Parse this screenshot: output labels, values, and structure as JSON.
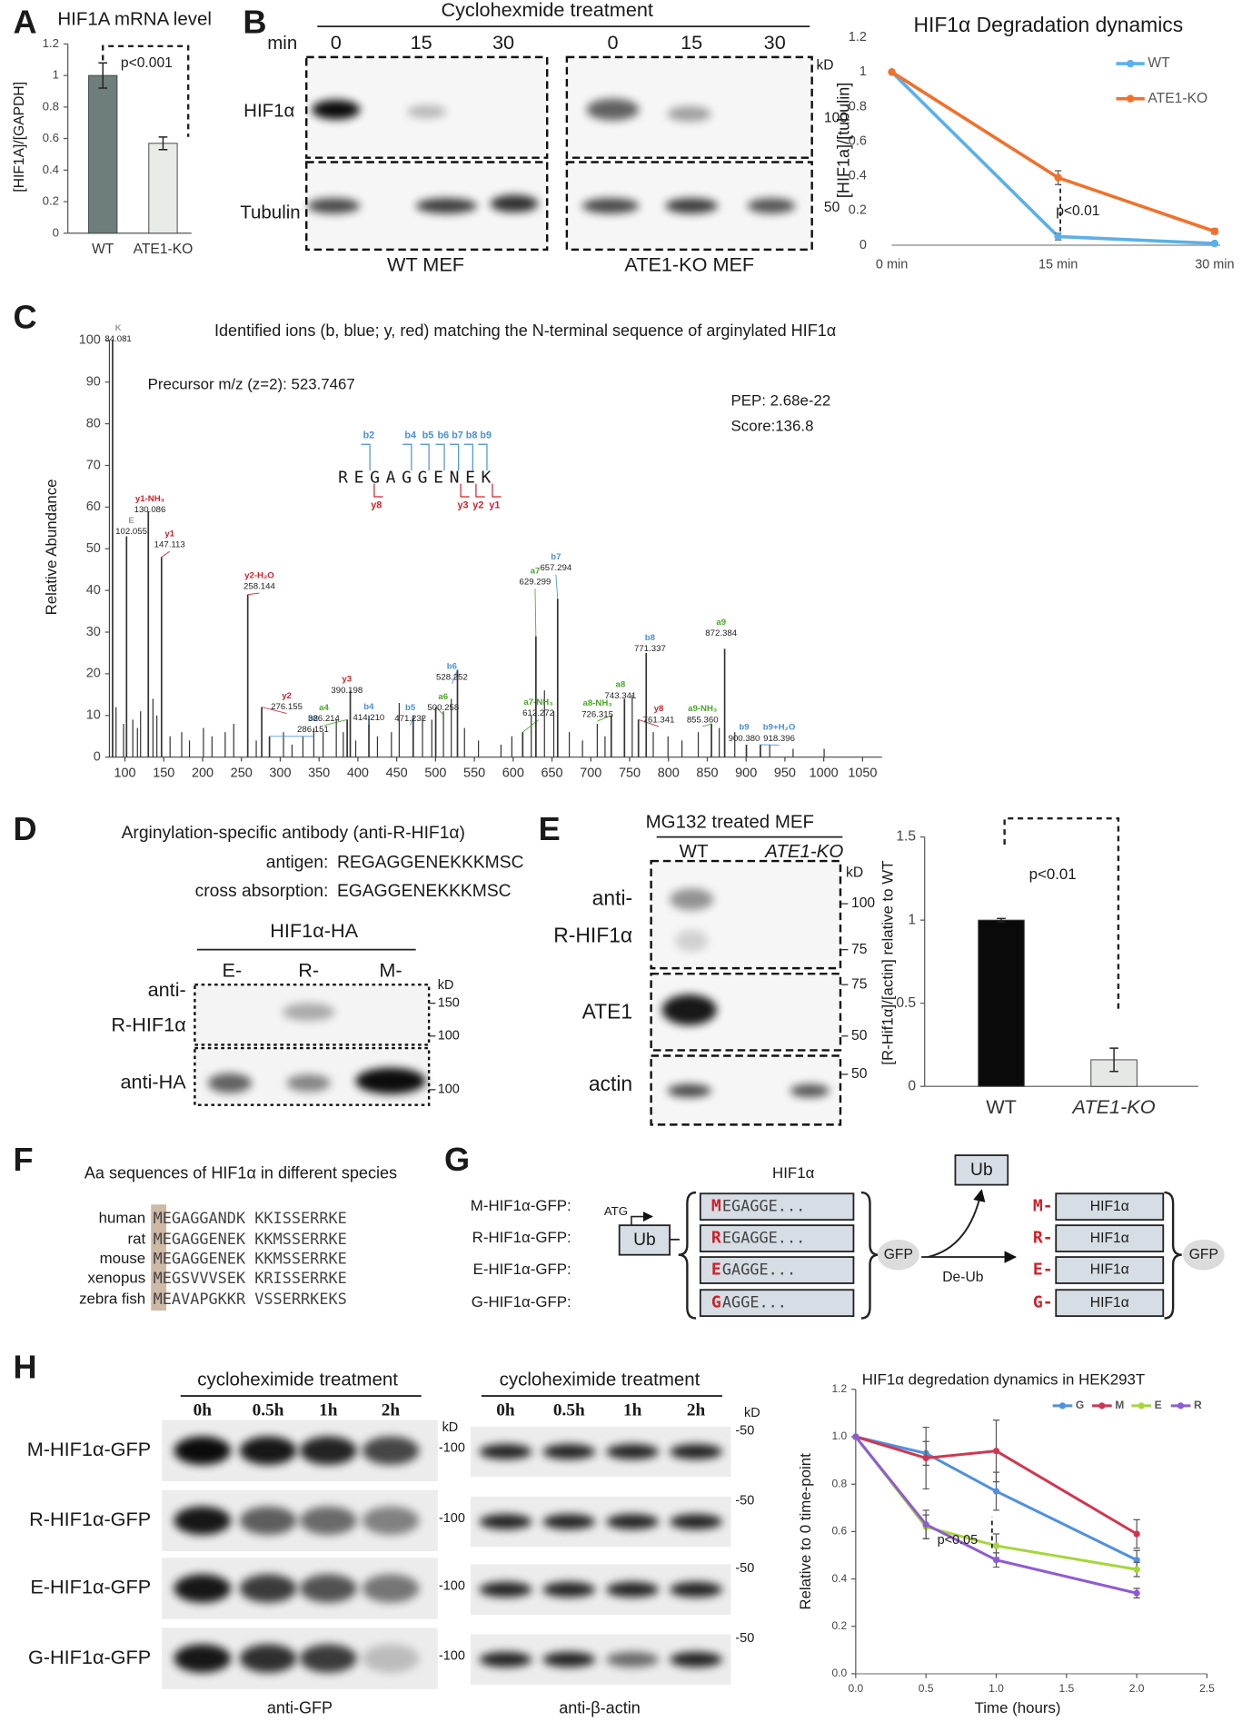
{
  "figure": {
    "panel_letters": [
      "A",
      "B",
      "C",
      "D",
      "E",
      "F",
      "G",
      "H"
    ],
    "B": {
      "title": "Cyclohexmide treatment",
      "min": "min",
      "lanes": [
        "0",
        "15",
        "30",
        "0",
        "15",
        "30"
      ],
      "rows": [
        "HIF1α",
        "Tubulin"
      ],
      "kd": "kD",
      "markers": [
        "100",
        "50"
      ],
      "groups": [
        "WT MEF",
        "ATE1-KO MEF"
      ]
    },
    "D": {
      "title": "Arginylation-specific antibody (anti-R-HIF1α)",
      "antigen_label": "antigen:",
      "antigen": "REGAGGENEKKKMSC",
      "cross_label": "cross absorption:",
      "cross": "EGAGGENEKKKMSC",
      "construct": "HIF1α-HA",
      "lanes": [
        "E-",
        "R-",
        "M-"
      ],
      "rows": [
        [
          "anti-",
          "R-HIF1α"
        ],
        [
          "anti-HA"
        ]
      ],
      "kd": "kD",
      "markers": [
        "150",
        "100",
        "100"
      ]
    },
    "E": {
      "title": "MG132 treated MEF",
      "lanes": [
        "WT",
        "ATE1-KO"
      ],
      "rows": [
        [
          "anti-",
          "R-HIF1α"
        ],
        [
          "ATE1"
        ],
        [
          "actin"
        ]
      ],
      "kd": "kD",
      "markers": [
        "100",
        "75",
        "75",
        "50",
        "50"
      ]
    },
    "F": {
      "title": "Aa sequences of HIF1α in different species",
      "rows": [
        {
          "species": "human",
          "sequence": "MEGAGGANDK KKISSERRKE"
        },
        {
          "species": "rat",
          "sequence": "MEGAGGENEK KKMSSERRKE"
        },
        {
          "species": "mouse",
          "sequence": "MEGAGGENEK KKMSSERRKE"
        },
        {
          "species": "xenopus",
          "sequence": "MEGSVVVSEK KRISSERRKE"
        },
        {
          "species": "zebra fish",
          "sequence": "MEAVAPGKKR VSSERRKEKS"
        }
      ]
    },
    "G": {
      "constructs": [
        "M-HIF1α-GFP:",
        "R-HIF1α-GFP:",
        "E-HIF1α-GFP:",
        "G-HIF1α-GFP:"
      ],
      "header": "HIF1α",
      "atg": "ATG",
      "ub": "Ub",
      "sequences": [
        {
          "first": "M",
          "rest": "EGAGGE..."
        },
        {
          "first": "R",
          "rest": "EGAGGE..."
        },
        {
          "first": "E",
          "rest": "GAGGE..."
        },
        {
          "first": "G",
          "rest": "AGGE..."
        }
      ],
      "gfp": "GFP",
      "released_ub": "Ub",
      "deub": "De-Ub",
      "products": [
        {
          "first": "M-",
          "protein": "HIF1α"
        },
        {
          "first": "R-",
          "protein": "HIF1α"
        },
        {
          "first": "E-",
          "protein": "HIF1α"
        },
        {
          "first": "G-",
          "protein": "HIF1α"
        }
      ],
      "gfp2": "GFP"
    },
    "H": {
      "treatments": [
        "cycloheximide treatment",
        "cycloheximide treatment"
      ],
      "lanes": [
        "0h",
        "0.5h",
        "1h",
        "2h",
        "0h",
        "0.5h",
        "1h",
        "2h"
      ],
      "rows": [
        "M-HIF1α-GFP",
        "R-HIF1α-GFP",
        "E-HIF1α-GFP",
        "G-HIF1α-GFP"
      ],
      "kd": [
        "kD",
        "kD"
      ],
      "gfp_markers": [
        "-100",
        "-100",
        "-100",
        "-100"
      ],
      "actin_markers": [
        "-50",
        "-50",
        "-50",
        "-50"
      ],
      "antibodies": [
        "anti-GFP",
        "anti-β-actin"
      ]
    }
  },
  "chart_data": [
    {
      "type": "bar",
      "title": "HIF1A mRNA level",
      "y_label": "[HIF1A]/[GAPDH]",
      "categories": [
        "WT",
        "ATE1-KO"
      ],
      "values": [
        1,
        0.57
      ],
      "errors": [
        0.08,
        0.04
      ],
      "colors": [
        "#6e7e7a",
        "#e8ebe8"
      ],
      "ylim": [
        0,
        1.2
      ],
      "yticks": [
        0,
        0.2,
        0.4,
        0.6,
        0.8,
        1,
        1.2
      ],
      "annotation": "p<0.001"
    },
    {
      "type": "line",
      "title": "HIF1α Degradation dynamics",
      "y_label": "[HIF1a]/[tubulin]",
      "categories": [
        "0 min",
        "15 min",
        "30 min"
      ],
      "series": [
        {
          "name": "WT",
          "color": "#5ab0ea",
          "values": [
            1,
            0.05,
            0.01
          ],
          "errors": [
            0,
            0.02,
            0
          ]
        },
        {
          "name": "ATE1-KO",
          "color": "#f0712c",
          "values": [
            1,
            0.39,
            0.08
          ],
          "errors": [
            0,
            0.04,
            0.015
          ]
        }
      ],
      "ylim": [
        0,
        1.2
      ],
      "yticks": [
        0,
        0.2,
        0.4,
        0.6,
        0.8,
        1,
        1.2
      ],
      "legend": "upper right",
      "annotation": "p<0.01"
    },
    {
      "type": "spectrum",
      "title": "Identified ions (b, blue;  y, red) matching the N-terminal sequence of arginylated HIF1α",
      "y_label": "Relative Abundance",
      "annotations": [
        "Precursor m/z (z=2): 523.7467",
        "PEP: 2.68e-22",
        "Score:136.8"
      ],
      "sequence": "REGAGGENEK",
      "b_ions": [
        "b2",
        "b4",
        "b5",
        "b6",
        "b7",
        "b8",
        "b9"
      ],
      "y_ions": [
        "y8",
        "y3",
        "y2",
        "y1"
      ],
      "x": [
        84.081,
        102.055,
        130.086,
        147.113,
        258.144,
        276.155,
        286.151,
        386.214,
        390.198,
        414.21,
        471.232,
        500.258,
        528.252,
        612.272,
        629.299,
        657.294,
        726.315,
        743.341,
        761.341,
        771.337,
        855.36,
        872.384,
        900.38,
        918.396
      ],
      "values": [
        100,
        53,
        59,
        48,
        39,
        12,
        5,
        9,
        16,
        10,
        10,
        12,
        21,
        6,
        29,
        38,
        10,
        14,
        9,
        25,
        8,
        26,
        3,
        3
      ],
      "x_labels": [
        "84.081",
        "102.055",
        "130.086",
        "147.113",
        "258.144",
        "276.155",
        "286.151",
        "386.214",
        "390.198",
        "414.210",
        "471.232",
        "500.258",
        "528.252",
        "612.272",
        "629.299",
        "657.294",
        "726.315",
        "743.341",
        "761.341",
        "771.337",
        "855.360",
        "872.384",
        "900.380",
        "918.396"
      ],
      "ion_labels": [
        "K",
        "E",
        "y1-NH₃",
        "y1",
        "y2-H₂O",
        "y2",
        "b2",
        "a4",
        "y3",
        "b4",
        "b5",
        "a6",
        "b6",
        "a7-NH₃",
        "a7",
        "b7",
        "a8-NH₃",
        "a8",
        "y8",
        "b8",
        "a9-NH₃",
        "a9",
        "b9",
        "b9+H₂O"
      ],
      "ion_colors": {
        "b": "#4a8fd8",
        "y": "#d0202a",
        "a": "#4aa52a",
        "other": "#9a9a9a"
      },
      "color": "#333333",
      "unlabeled_x": [
        88.5,
        98.2,
        110.1,
        116.1,
        120.1,
        136.1,
        141.1,
        158.1,
        173.1,
        183.1,
        201.1,
        212.1,
        229.1,
        240.1,
        269.1,
        304.2,
        315.2,
        329.2,
        343.2,
        355.2,
        372.2,
        381.2,
        397.2,
        425.2,
        443.2,
        453.2,
        483.2,
        495.2,
        510.2,
        520.3,
        537.3,
        555.3,
        584.3,
        598.3,
        623.3,
        640.3,
        652.3,
        672.3,
        689.3,
        708.3,
        718.3,
        753.3,
        780.4,
        799.4,
        817.4,
        838.4,
        865.4,
        885.4,
        930.4,
        960.5,
        1000.5
      ],
      "unlabeled_values": [
        12,
        8,
        9,
        7,
        11,
        14,
        10,
        5,
        6,
        4,
        7,
        5,
        6,
        8,
        4,
        6,
        3,
        5,
        7,
        6,
        9,
        6,
        4,
        5,
        6,
        13,
        10,
        9,
        11,
        14,
        7,
        4,
        3,
        5,
        10,
        16,
        11,
        6,
        4,
        8,
        5,
        15,
        6,
        5,
        4,
        6,
        7,
        6,
        3,
        2,
        2
      ],
      "xlim": [
        80,
        1075
      ],
      "xticks": [
        100,
        150,
        200,
        250,
        300,
        350,
        400,
        450,
        500,
        550,
        600,
        650,
        700,
        750,
        800,
        850,
        900,
        950,
        1000,
        1050
      ],
      "ylim": [
        0,
        100
      ],
      "yticks": [
        0,
        10,
        20,
        30,
        40,
        50,
        60,
        70,
        80,
        90,
        100
      ]
    },
    {
      "type": "bar",
      "y_label": "[R-Hif1α]/[actin] relative to WT",
      "categories": [
        "WT",
        "ATE1-KO"
      ],
      "values": [
        1,
        0.16
      ],
      "errors": [
        0.01,
        0.07
      ],
      "colors": [
        "#0a0a0a",
        "#e6e8e6"
      ],
      "ylim": [
        0,
        1.5
      ],
      "yticks": [
        0,
        0.5,
        1,
        1.5
      ],
      "annotation": "p<0.01"
    },
    {
      "type": "line",
      "title": "HIF1α degredation dynamics in HEK293T",
      "x_label": "Time (hours)",
      "y_label": "Relative to 0 time-point",
      "x": [
        0,
        0.5,
        1,
        2
      ],
      "series": [
        {
          "name": "G",
          "color": "#4f90e0",
          "values": [
            1,
            0.93,
            0.77,
            0.48
          ],
          "errors": [
            0,
            0.05,
            0.08,
            0.04
          ]
        },
        {
          "name": "M",
          "color": "#d1364f",
          "values": [
            1,
            0.91,
            0.94,
            0.59
          ],
          "errors": [
            0,
            0.13,
            0.13,
            0.06
          ]
        },
        {
          "name": "E",
          "color": "#a5d63a",
          "values": [
            1,
            0.62,
            0.54,
            0.44
          ],
          "errors": [
            0,
            0.05,
            0.05,
            0.03
          ]
        },
        {
          "name": "R",
          "color": "#8e5bd6",
          "values": [
            1,
            0.63,
            0.48,
            0.34
          ],
          "errors": [
            0,
            0.06,
            0.03,
            0.02
          ]
        }
      ],
      "xlim": [
        0,
        2.5
      ],
      "xticks": [
        {
          "value": 0,
          "label": "0.0"
        },
        0.5,
        {
          "value": 1,
          "label": "1.0"
        },
        1.5,
        {
          "value": 2,
          "label": "2.0"
        },
        2.5
      ],
      "ylim": [
        0,
        1.2
      ],
      "yticks": [
        {
          "value": 0,
          "label": "0.0"
        },
        0.2,
        0.4,
        0.6,
        0.8,
        {
          "value": 1,
          "label": "1.0"
        },
        1.2
      ],
      "legend": "upper right",
      "annotation": "p<0.05"
    }
  ]
}
